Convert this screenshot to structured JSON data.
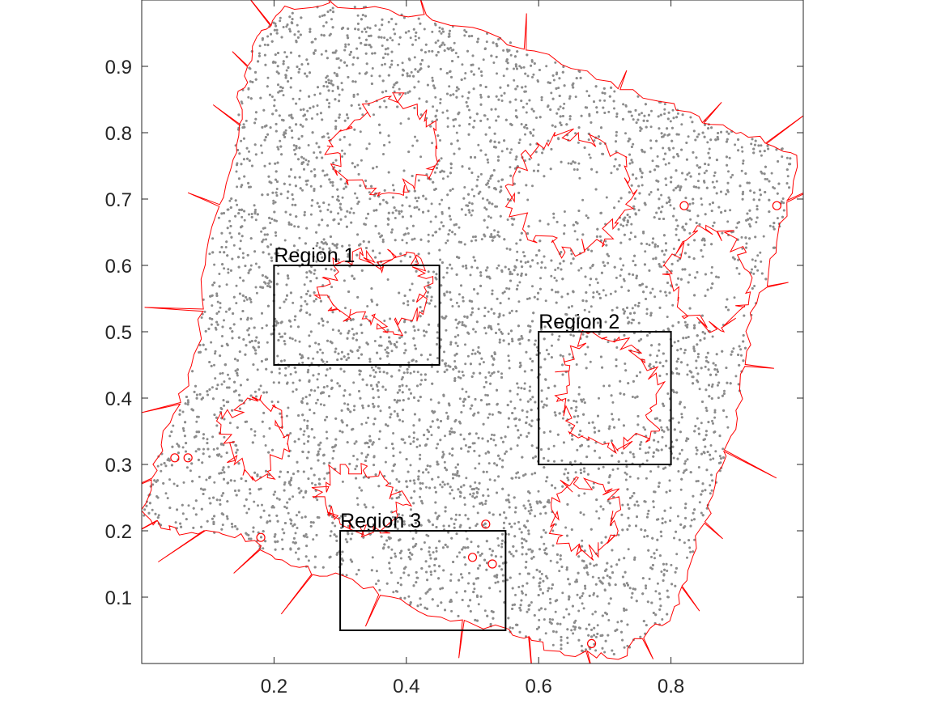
{
  "chart_data": {
    "type": "scatter",
    "title": "",
    "xlabel": "",
    "ylabel": "",
    "xlim": [
      0,
      1
    ],
    "ylim": [
      0,
      1
    ],
    "xticks": [
      {
        "value": 0.2,
        "label": "0.2"
      },
      {
        "value": 0.4,
        "label": "0.4"
      },
      {
        "value": 0.6,
        "label": "0.6"
      },
      {
        "value": 0.8,
        "label": "0.8"
      }
    ],
    "yticks": [
      {
        "value": 0.1,
        "label": "0.1"
      },
      {
        "value": 0.2,
        "label": "0.2"
      },
      {
        "value": 0.3,
        "label": "0.3"
      },
      {
        "value": 0.4,
        "label": "0.4"
      },
      {
        "value": 0.5,
        "label": "0.5"
      },
      {
        "value": 0.6,
        "label": "0.6"
      },
      {
        "value": 0.7,
        "label": "0.7"
      },
      {
        "value": 0.8,
        "label": "0.8"
      },
      {
        "value": 0.9,
        "label": "0.9"
      }
    ],
    "grid": false,
    "point_color": "#8c8c8c",
    "boundary_color": "#ff0000",
    "box_color": "#000000",
    "point_domain": [
      [
        0.0,
        0.22
      ],
      [
        0.03,
        0.33
      ],
      [
        0.08,
        0.45
      ],
      [
        0.1,
        0.62
      ],
      [
        0.14,
        0.76
      ],
      [
        0.15,
        0.86
      ],
      [
        0.17,
        0.94
      ],
      [
        0.22,
        0.99
      ],
      [
        0.35,
        0.99
      ],
      [
        0.5,
        0.96
      ],
      [
        0.65,
        0.9
      ],
      [
        0.8,
        0.84
      ],
      [
        0.9,
        0.8
      ],
      [
        0.99,
        0.77
      ],
      [
        0.96,
        0.62
      ],
      [
        0.92,
        0.52
      ],
      [
        0.9,
        0.38
      ],
      [
        0.87,
        0.27
      ],
      [
        0.83,
        0.16
      ],
      [
        0.8,
        0.07
      ],
      [
        0.72,
        0.01
      ],
      [
        0.62,
        0.02
      ],
      [
        0.55,
        0.05
      ],
      [
        0.42,
        0.08
      ],
      [
        0.3,
        0.13
      ],
      [
        0.22,
        0.15
      ],
      [
        0.15,
        0.19
      ],
      [
        0.05,
        0.2
      ]
    ],
    "regions": [
      {
        "label": "Region 1",
        "x": [
          0.2,
          0.45
        ],
        "y": [
          0.45,
          0.6
        ]
      },
      {
        "label": "Region 2",
        "x": [
          0.6,
          0.8
        ],
        "y": [
          0.3,
          0.5
        ]
      },
      {
        "label": "Region 3",
        "x": [
          0.3,
          0.55
        ],
        "y": [
          0.05,
          0.2
        ]
      }
    ],
    "inner_boundaries": [
      [
        [
          0.33,
          0.62
        ],
        [
          0.36,
          0.6
        ],
        [
          0.4,
          0.62
        ],
        [
          0.43,
          0.58
        ],
        [
          0.42,
          0.53
        ],
        [
          0.38,
          0.5
        ],
        [
          0.34,
          0.52
        ],
        [
          0.3,
          0.53
        ],
        [
          0.27,
          0.55
        ],
        [
          0.29,
          0.6
        ],
        [
          0.33,
          0.62
        ]
      ],
      [
        [
          0.28,
          0.78
        ],
        [
          0.33,
          0.82
        ],
        [
          0.38,
          0.86
        ],
        [
          0.43,
          0.82
        ],
        [
          0.45,
          0.76
        ],
        [
          0.41,
          0.72
        ],
        [
          0.36,
          0.71
        ],
        [
          0.31,
          0.73
        ],
        [
          0.28,
          0.78
        ]
      ],
      [
        [
          0.55,
          0.72
        ],
        [
          0.6,
          0.78
        ],
        [
          0.66,
          0.8
        ],
        [
          0.72,
          0.77
        ],
        [
          0.74,
          0.7
        ],
        [
          0.7,
          0.64
        ],
        [
          0.64,
          0.62
        ],
        [
          0.58,
          0.65
        ],
        [
          0.55,
          0.72
        ]
      ],
      [
        [
          0.64,
          0.45
        ],
        [
          0.68,
          0.5
        ],
        [
          0.74,
          0.48
        ],
        [
          0.78,
          0.42
        ],
        [
          0.77,
          0.35
        ],
        [
          0.72,
          0.32
        ],
        [
          0.66,
          0.34
        ],
        [
          0.63,
          0.4
        ],
        [
          0.64,
          0.45
        ]
      ],
      [
        [
          0.79,
          0.6
        ],
        [
          0.84,
          0.66
        ],
        [
          0.9,
          0.64
        ],
        [
          0.92,
          0.56
        ],
        [
          0.88,
          0.5
        ],
        [
          0.82,
          0.52
        ],
        [
          0.79,
          0.6
        ]
      ],
      [
        [
          0.12,
          0.36
        ],
        [
          0.16,
          0.4
        ],
        [
          0.2,
          0.39
        ],
        [
          0.22,
          0.33
        ],
        [
          0.19,
          0.28
        ],
        [
          0.14,
          0.3
        ],
        [
          0.12,
          0.36
        ]
      ],
      [
        [
          0.26,
          0.25
        ],
        [
          0.3,
          0.3
        ],
        [
          0.36,
          0.29
        ],
        [
          0.4,
          0.24
        ],
        [
          0.36,
          0.2
        ],
        [
          0.3,
          0.21
        ],
        [
          0.26,
          0.25
        ]
      ],
      [
        [
          0.62,
          0.25
        ],
        [
          0.66,
          0.28
        ],
        [
          0.71,
          0.26
        ],
        [
          0.72,
          0.2
        ],
        [
          0.68,
          0.16
        ],
        [
          0.63,
          0.19
        ],
        [
          0.62,
          0.25
        ]
      ]
    ],
    "small_holes": [
      [
        0.05,
        0.31
      ],
      [
        0.07,
        0.31
      ],
      [
        0.18,
        0.19
      ],
      [
        0.5,
        0.16
      ],
      [
        0.53,
        0.15
      ],
      [
        0.68,
        0.03
      ],
      [
        0.82,
        0.69
      ],
      [
        0.96,
        0.69
      ],
      [
        0.52,
        0.21
      ]
    ]
  }
}
